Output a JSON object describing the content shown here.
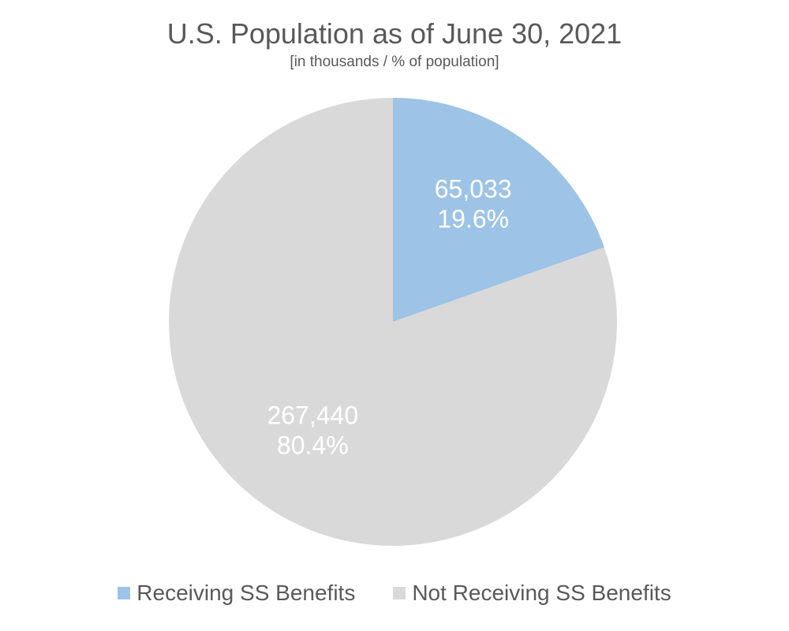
{
  "chart_data": {
    "type": "pie",
    "title": "U.S. Population as of June 30, 2021",
    "subtitle": "[in thousands / % of population]",
    "slices": [
      {
        "name": "Receiving SS Benefits",
        "value": 65033,
        "value_label": "65,033",
        "percent": 19.6,
        "percent_label": "19.6%",
        "color": "#9DC3E6"
      },
      {
        "name": "Not Receiving SS Benefits",
        "value": 267440,
        "value_label": "267,440",
        "percent": 80.4,
        "percent_label": "80.4%",
        "color": "#D9D9D9"
      }
    ],
    "start_angle": "12 o'clock, clockwise",
    "legend_position": "bottom"
  }
}
